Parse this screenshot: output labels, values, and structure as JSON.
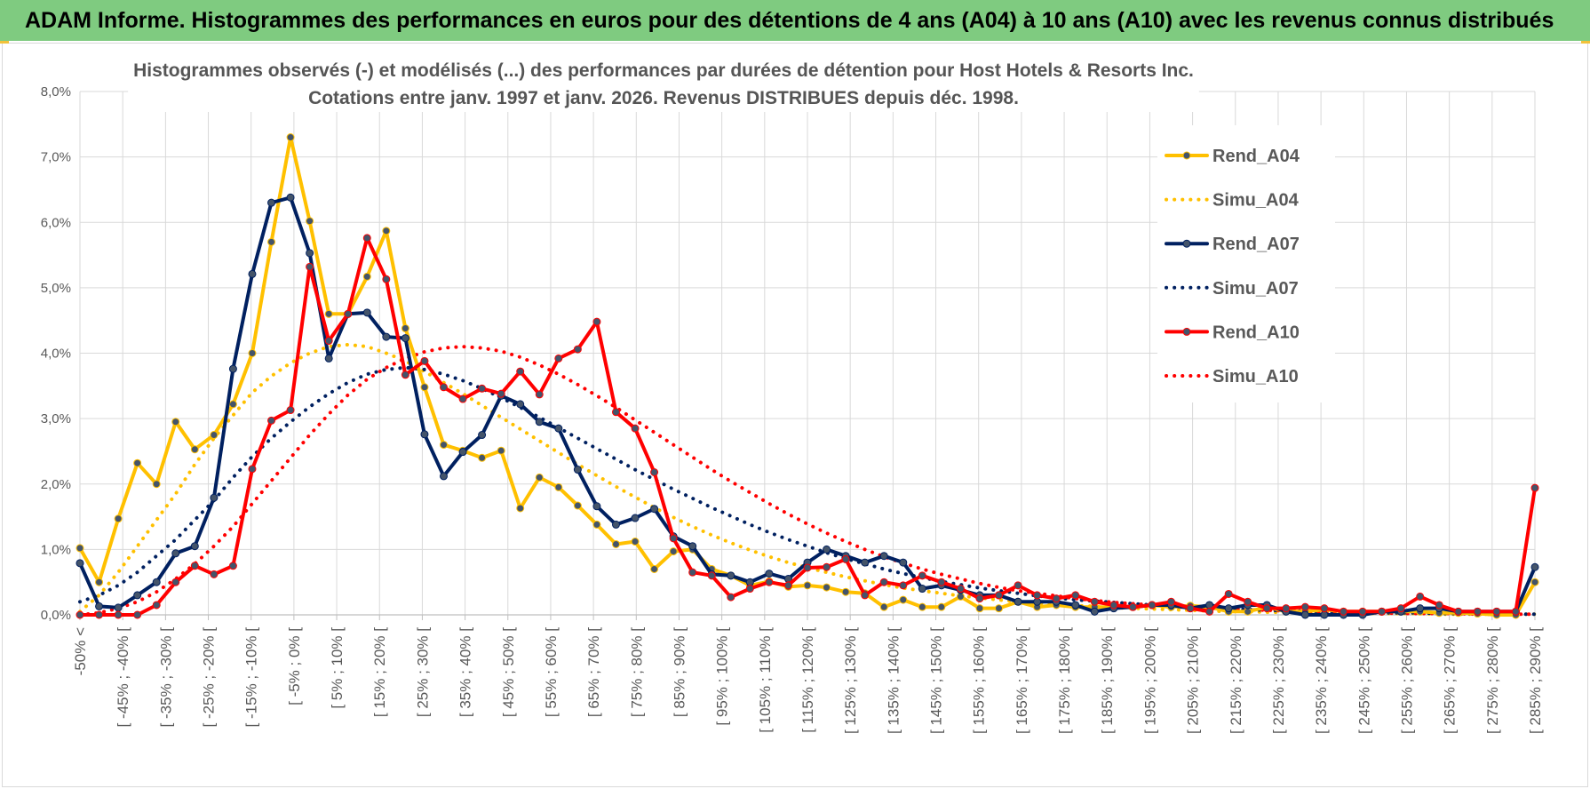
{
  "banner": {
    "title": "ADAM Informe. Histogrammes des performances en euros pour des détentions de 4 ans (A04) à 10 ans (A10) avec les revenus connus distribués"
  },
  "chart_data": {
    "type": "line",
    "title": "Histogrammes observés (-) et modélisés (...) des performances par durées de détention pour Host Hotels & Resorts Inc.",
    "subtitle": "Cotations entre janv. 1997 et janv. 2026. Revenus DISTRIBUES depuis déc. 1998.",
    "xlabel": "",
    "ylabel": "",
    "ylim": [
      0,
      8
    ],
    "y_ticks": [
      "0,0%",
      "1,0%",
      "2,0%",
      "3,0%",
      "4,0%",
      "5,0%",
      "6,0%",
      "7,0%",
      "8,0%"
    ],
    "x_labels": [
      "-50% <",
      "[ -45% ; -40% [",
      "[ -35% ; -30% [",
      "[ -25% ; -20% [",
      "[ -15% ; -10% [",
      "[ -5% ; 0% [",
      "[ 5% ; 10% [",
      "[ 15% ; 20% [",
      "[ 25% ; 30% [",
      "[ 35% ; 40% [",
      "[ 45% ; 50% [",
      "[ 55% ; 60% [",
      "[ 65% ; 70% [",
      "[ 75% ; 80% [",
      "[ 85% ; 90% [",
      "[ 95% ; 100% [",
      "[ 105% ; 110% [",
      "[ 115% ; 120% [",
      "[ 125% ; 130% [",
      "[ 135% ; 140% [",
      "[ 145% ; 150% [",
      "[ 155% ; 160% [",
      "[ 165% ; 170% [",
      "[ 175% ; 180% [",
      "[ 185% ; 190% [",
      "[ 195% ; 200% [",
      "[ 205% ; 210% [",
      "[ 215% ; 220% [",
      "[ 225% ; 230% [",
      "[ 235% ; 240% [",
      "[ 245% ; 250% [",
      "[ 255% ; 260% [",
      "[ 265% ; 270% [",
      "[ 275% ; 280% [",
      "[ 285% ; 290% ["
    ],
    "series": [
      {
        "name": "Rend_A04",
        "color": "#ffc000",
        "style": "solid",
        "markers": true,
        "values": [
          1.02,
          0.5,
          1.47,
          2.32,
          2.0,
          2.95,
          2.53,
          2.75,
          3.22,
          4.0,
          5.7,
          7.3,
          6.02,
          4.6,
          4.6,
          5.17,
          5.87,
          4.38,
          3.48,
          2.6,
          2.51,
          2.4,
          2.51,
          1.63,
          2.1,
          1.95,
          1.67,
          1.38,
          1.08,
          1.12,
          0.7,
          0.97,
          1.0,
          0.7,
          0.6,
          0.45,
          0.51,
          0.43,
          0.45,
          0.42,
          0.35,
          0.33,
          0.12,
          0.23,
          0.12,
          0.12,
          0.28,
          0.1,
          0.1,
          0.2,
          0.12,
          0.15,
          0.12,
          0.12,
          0.12,
          0.12,
          0.15,
          0.12,
          0.14,
          0.12,
          0.05,
          0.05,
          0.12,
          0.05,
          0.05,
          0.08,
          0.05,
          0.05,
          0.05,
          0.05,
          0.05,
          0.03,
          0.03,
          0.02,
          0.0,
          0.0,
          0.5
        ]
      },
      {
        "name": "Simu_A04",
        "color": "#ffc000",
        "style": "dotted",
        "markers": false,
        "values": [
          0.05,
          0.3,
          0.65,
          1.05,
          1.45,
          1.85,
          2.3,
          2.7,
          3.05,
          3.4,
          3.65,
          3.85,
          4.0,
          4.1,
          4.13,
          4.1,
          4.0,
          3.88,
          3.72,
          3.55,
          3.38,
          3.2,
          3.02,
          2.84,
          2.66,
          2.48,
          2.3,
          2.13,
          1.96,
          1.8,
          1.64,
          1.49,
          1.35,
          1.22,
          1.1,
          0.99,
          0.89,
          0.8,
          0.72,
          0.65,
          0.58,
          0.52,
          0.46,
          0.41,
          0.37,
          0.33,
          0.29,
          0.26,
          0.23,
          0.2,
          0.18,
          0.16,
          0.14,
          0.13,
          0.11,
          0.1,
          0.09,
          0.08,
          0.07,
          0.06,
          0.05,
          0.05,
          0.04,
          0.04,
          0.03,
          0.03,
          0.03,
          0.02,
          0.02,
          0.02,
          0.02,
          0.01,
          0.01,
          0.01,
          0.01,
          0.01,
          0.01
        ]
      },
      {
        "name": "Rend_A07",
        "color": "#002060",
        "style": "solid",
        "markers": true,
        "values": [
          0.79,
          0.13,
          0.11,
          0.3,
          0.5,
          0.94,
          1.05,
          1.79,
          3.76,
          5.21,
          6.3,
          6.38,
          5.53,
          3.92,
          4.6,
          4.62,
          4.25,
          4.23,
          2.76,
          2.12,
          2.49,
          2.75,
          3.35,
          3.22,
          2.95,
          2.85,
          2.22,
          1.66,
          1.38,
          1.48,
          1.62,
          1.2,
          1.05,
          0.62,
          0.6,
          0.5,
          0.63,
          0.55,
          0.8,
          1.0,
          0.9,
          0.8,
          0.9,
          0.8,
          0.4,
          0.45,
          0.38,
          0.3,
          0.3,
          0.2,
          0.2,
          0.2,
          0.15,
          0.05,
          0.1,
          0.12,
          0.15,
          0.15,
          0.1,
          0.15,
          0.1,
          0.15,
          0.15,
          0.05,
          0.0,
          0.0,
          0.0,
          0.0,
          0.05,
          0.05,
          0.1,
          0.1,
          0.05,
          0.05,
          0.05,
          0.05,
          0.73
        ]
      },
      {
        "name": "Simu_A07",
        "color": "#002060",
        "style": "dotted",
        "markers": false,
        "values": [
          0.2,
          0.3,
          0.45,
          0.65,
          0.9,
          1.15,
          1.45,
          1.75,
          2.1,
          2.42,
          2.7,
          2.95,
          3.18,
          3.38,
          3.55,
          3.68,
          3.75,
          3.78,
          3.75,
          3.68,
          3.58,
          3.46,
          3.32,
          3.17,
          3.02,
          2.86,
          2.7,
          2.54,
          2.38,
          2.22,
          2.07,
          1.92,
          1.78,
          1.64,
          1.51,
          1.38,
          1.26,
          1.15,
          1.05,
          0.95,
          0.86,
          0.78,
          0.7,
          0.63,
          0.57,
          0.51,
          0.46,
          0.41,
          0.37,
          0.33,
          0.29,
          0.26,
          0.23,
          0.21,
          0.19,
          0.17,
          0.15,
          0.13,
          0.12,
          0.1,
          0.09,
          0.08,
          0.07,
          0.06,
          0.06,
          0.05,
          0.04,
          0.04,
          0.03,
          0.03,
          0.03,
          0.02,
          0.02,
          0.02,
          0.02,
          0.01,
          0.01
        ]
      },
      {
        "name": "Rend_A10",
        "color": "#ff0000",
        "style": "solid",
        "markers": true,
        "values": [
          0.0,
          0.0,
          0.0,
          0.0,
          0.15,
          0.5,
          0.75,
          0.62,
          0.75,
          2.23,
          2.97,
          3.13,
          5.32,
          4.19,
          4.6,
          5.76,
          5.13,
          3.67,
          3.88,
          3.48,
          3.3,
          3.46,
          3.38,
          3.72,
          3.37,
          3.92,
          4.06,
          4.48,
          3.1,
          2.85,
          2.18,
          1.17,
          0.65,
          0.6,
          0.27,
          0.4,
          0.5,
          0.45,
          0.72,
          0.73,
          0.85,
          0.3,
          0.5,
          0.45,
          0.6,
          0.5,
          0.4,
          0.25,
          0.3,
          0.45,
          0.3,
          0.25,
          0.3,
          0.2,
          0.15,
          0.12,
          0.15,
          0.2,
          0.1,
          0.05,
          0.32,
          0.2,
          0.1,
          0.1,
          0.12,
          0.1,
          0.05,
          0.05,
          0.05,
          0.1,
          0.28,
          0.15,
          0.05,
          0.05,
          0.05,
          0.05,
          1.94
        ]
      },
      {
        "name": "Simu_A10",
        "color": "#ff0000",
        "style": "dotted",
        "markers": false,
        "values": [
          0.0,
          0.03,
          0.1,
          0.2,
          0.35,
          0.55,
          0.78,
          1.05,
          1.35,
          1.7,
          2.05,
          2.4,
          2.75,
          3.07,
          3.36,
          3.6,
          3.78,
          3.92,
          4.02,
          4.08,
          4.1,
          4.08,
          4.03,
          3.94,
          3.82,
          3.68,
          3.52,
          3.35,
          3.17,
          2.98,
          2.79,
          2.6,
          2.41,
          2.22,
          2.04,
          1.87,
          1.7,
          1.54,
          1.39,
          1.25,
          1.12,
          1.0,
          0.89,
          0.79,
          0.7,
          0.62,
          0.55,
          0.48,
          0.42,
          0.37,
          0.33,
          0.29,
          0.25,
          0.22,
          0.19,
          0.17,
          0.15,
          0.13,
          0.11,
          0.1,
          0.09,
          0.08,
          0.07,
          0.06,
          0.05,
          0.04,
          0.04,
          0.03,
          0.03,
          0.02,
          0.02,
          0.02,
          0.02,
          0.01,
          0.01,
          0.01,
          0.01
        ]
      }
    ],
    "legend_position": "right"
  }
}
